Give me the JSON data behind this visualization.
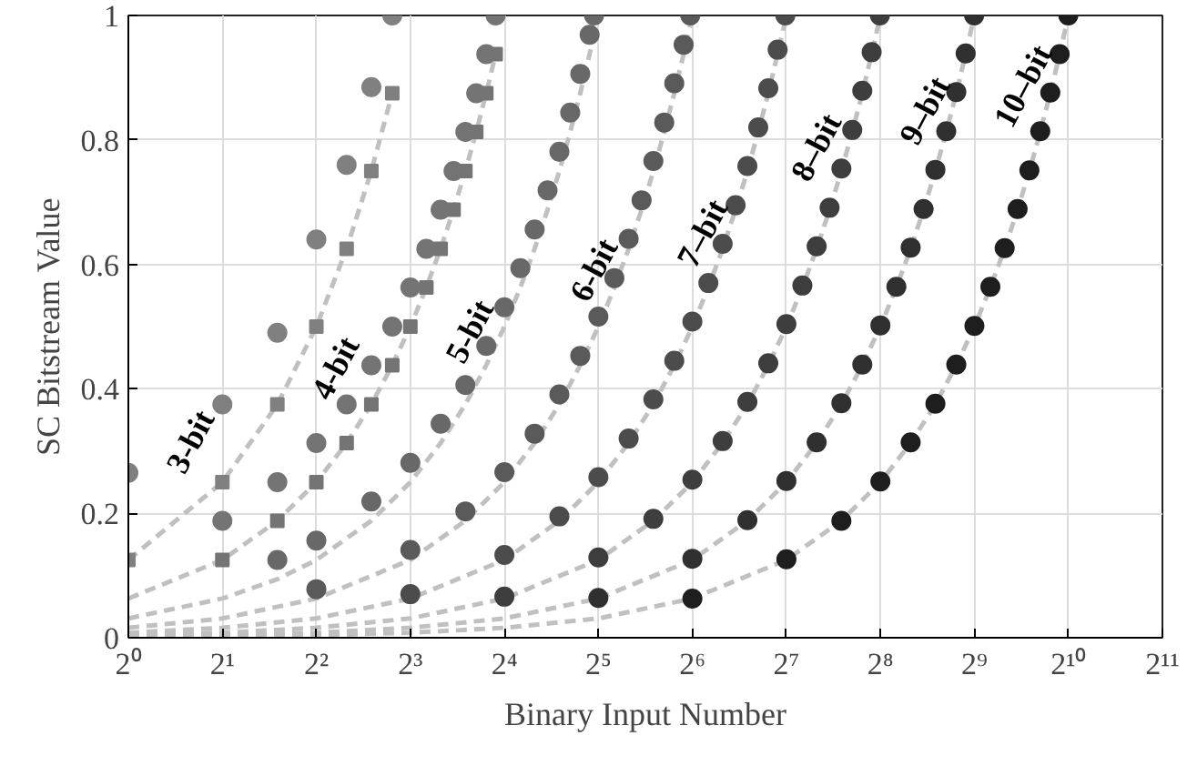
{
  "chart_data": {
    "type": "scatter",
    "xlabel": "Binary Input Number",
    "ylabel": "SC Bitstream Value",
    "xlim": [
      1,
      2048
    ],
    "ylim": [
      0,
      1
    ],
    "log": "x",
    "grid": true,
    "xticks": [
      {
        "value": 1,
        "label": "2⁰"
      },
      {
        "value": 2,
        "label": "2¹"
      },
      {
        "value": 4,
        "label": "2²"
      },
      {
        "value": 8,
        "label": "2³"
      },
      {
        "value": 16,
        "label": "2⁴"
      },
      {
        "value": 32,
        "label": "2⁵"
      },
      {
        "value": 64,
        "label": "2⁶"
      },
      {
        "value": 128,
        "label": "2⁷"
      },
      {
        "value": 256,
        "label": "2⁸"
      },
      {
        "value": 512,
        "label": "2⁹"
      },
      {
        "value": 1024,
        "label": "2¹⁰"
      },
      {
        "value": 2048,
        "label": "2¹¹"
      }
    ],
    "yticks": [
      0,
      0.2,
      0.4,
      0.6,
      0.8,
      1
    ],
    "series": [
      {
        "type": "line",
        "line_style": "dashed",
        "color": "#c0c0c0",
        "x": [
          1,
          2,
          3,
          4,
          5,
          6,
          7
        ],
        "values": [
          0.125,
          0.25,
          0.375,
          0.5,
          0.625,
          0.75,
          0.875
        ]
      },
      {
        "marker": "square",
        "color": "#808080",
        "x": [
          1,
          2,
          3,
          4,
          5,
          6,
          7
        ],
        "values": [
          0.125,
          0.25,
          0.375,
          0.5,
          0.625,
          0.75,
          0.875
        ]
      },
      {
        "marker": "circle",
        "color": "#808080",
        "x": [
          1,
          2,
          3,
          4,
          5,
          6,
          7
        ],
        "values": [
          0.265,
          0.375,
          0.49,
          0.64,
          0.76,
          0.885,
          1
        ]
      },
      {
        "type": "line",
        "line_style": "dashed",
        "color": "#c0c0c0",
        "x": [
          1,
          2,
          3,
          4,
          5,
          6,
          7,
          8,
          9,
          10,
          11,
          12,
          13,
          14,
          15
        ],
        "values": [
          0.063,
          0.125,
          0.188,
          0.25,
          0.313,
          0.375,
          0.438,
          0.5,
          0.563,
          0.625,
          0.688,
          0.75,
          0.813,
          0.875,
          0.938
        ]
      },
      {
        "marker": "square",
        "color": "#747474",
        "x": [
          2,
          3,
          4,
          5,
          6,
          7,
          8,
          9,
          10,
          11,
          12,
          13,
          14,
          15
        ],
        "values": [
          0.125,
          0.188,
          0.25,
          0.313,
          0.375,
          0.438,
          0.5,
          0.563,
          0.625,
          0.688,
          0.75,
          0.813,
          0.875,
          0.938
        ]
      },
      {
        "marker": "circle",
        "color": "#747474",
        "x": [
          2,
          3,
          4,
          5,
          6,
          7,
          8,
          9,
          10,
          11,
          12,
          13,
          14,
          15
        ],
        "values": [
          0.188,
          0.25,
          0.313,
          0.375,
          0.438,
          0.5,
          0.563,
          0.625,
          0.688,
          0.75,
          0.813,
          0.875,
          0.938,
          1
        ]
      },
      {
        "type": "line",
        "line_style": "dashed",
        "color": "#c0c0c0",
        "x": [
          1,
          2,
          3,
          4,
          6,
          8,
          10,
          12,
          14,
          16,
          18,
          20,
          22,
          24,
          26,
          28,
          30,
          31
        ],
        "values": [
          0.031,
          0.063,
          0.094,
          0.125,
          0.188,
          0.25,
          0.313,
          0.375,
          0.438,
          0.5,
          0.563,
          0.625,
          0.688,
          0.75,
          0.813,
          0.875,
          0.938,
          0.969
        ]
      },
      {
        "marker": "circle",
        "color": "#686868",
        "x": [
          3,
          4,
          6,
          8,
          10,
          12,
          14,
          16,
          18,
          20,
          22,
          24,
          26,
          28,
          30,
          31
        ],
        "values": [
          0.125,
          0.156,
          0.219,
          0.281,
          0.344,
          0.406,
          0.469,
          0.531,
          0.594,
          0.656,
          0.719,
          0.781,
          0.844,
          0.906,
          0.969,
          1
        ]
      },
      {
        "type": "line",
        "line_style": "dashed",
        "color": "#c0c0c0",
        "x": [
          1,
          2,
          4,
          8,
          12,
          16,
          20,
          24,
          28,
          32,
          36,
          40,
          44,
          48,
          52,
          56,
          60,
          63
        ],
        "values": [
          0.016,
          0.031,
          0.063,
          0.125,
          0.188,
          0.25,
          0.313,
          0.375,
          0.438,
          0.5,
          0.563,
          0.625,
          0.688,
          0.75,
          0.813,
          0.875,
          0.938,
          0.984
        ]
      },
      {
        "marker": "circle",
        "color": "#5a5a5a",
        "x": [
          4,
          8,
          12,
          16,
          20,
          24,
          28,
          32,
          36,
          40,
          44,
          48,
          52,
          56,
          60,
          63
        ],
        "values": [
          0.078,
          0.141,
          0.203,
          0.266,
          0.328,
          0.391,
          0.453,
          0.516,
          0.578,
          0.641,
          0.703,
          0.766,
          0.828,
          0.891,
          0.953,
          1
        ]
      },
      {
        "type": "line",
        "line_style": "dashed",
        "color": "#c0c0c0",
        "x": [
          1,
          2,
          4,
          8,
          16,
          24,
          32,
          40,
          48,
          56,
          64,
          72,
          80,
          88,
          96,
          104,
          112,
          120,
          127
        ],
        "values": [
          0.008,
          0.016,
          0.031,
          0.063,
          0.125,
          0.188,
          0.25,
          0.313,
          0.375,
          0.438,
          0.5,
          0.563,
          0.625,
          0.688,
          0.75,
          0.813,
          0.875,
          0.938,
          0.992
        ]
      },
      {
        "marker": "circle",
        "color": "#4c4c4c",
        "x": [
          8,
          16,
          24,
          32,
          40,
          48,
          56,
          64,
          72,
          80,
          88,
          96,
          104,
          112,
          120,
          127
        ],
        "values": [
          0.07,
          0.133,
          0.195,
          0.258,
          0.32,
          0.383,
          0.445,
          0.508,
          0.57,
          0.633,
          0.695,
          0.758,
          0.82,
          0.883,
          0.945,
          1
        ]
      },
      {
        "type": "line",
        "line_style": "dashed",
        "color": "#c0c0c0",
        "x": [
          1,
          2,
          4,
          8,
          16,
          32,
          48,
          64,
          80,
          96,
          112,
          128,
          144,
          160,
          176,
          192,
          208,
          224,
          240,
          255
        ],
        "values": [
          0.004,
          0.008,
          0.016,
          0.031,
          0.063,
          0.125,
          0.188,
          0.25,
          0.313,
          0.375,
          0.438,
          0.5,
          0.563,
          0.625,
          0.688,
          0.75,
          0.813,
          0.875,
          0.938,
          0.996
        ]
      },
      {
        "marker": "circle",
        "color": "#3e3e3e",
        "x": [
          16,
          32,
          48,
          64,
          80,
          96,
          112,
          128,
          144,
          160,
          176,
          192,
          208,
          224,
          240,
          255
        ],
        "values": [
          0.066,
          0.129,
          0.191,
          0.254,
          0.316,
          0.379,
          0.441,
          0.504,
          0.566,
          0.629,
          0.691,
          0.754,
          0.816,
          0.879,
          0.941,
          1
        ]
      },
      {
        "type": "line",
        "line_style": "dashed",
        "color": "#c0c0c0",
        "x": [
          1,
          2,
          4,
          8,
          16,
          32,
          64,
          96,
          128,
          160,
          192,
          224,
          256,
          288,
          320,
          352,
          384,
          416,
          448,
          480,
          511
        ],
        "values": [
          0.002,
          0.004,
          0.008,
          0.016,
          0.031,
          0.063,
          0.125,
          0.188,
          0.25,
          0.313,
          0.375,
          0.438,
          0.5,
          0.563,
          0.625,
          0.688,
          0.75,
          0.813,
          0.875,
          0.938,
          0.998
        ]
      },
      {
        "marker": "circle",
        "color": "#303030",
        "x": [
          32,
          64,
          96,
          128,
          160,
          192,
          224,
          256,
          288,
          320,
          352,
          384,
          416,
          448,
          480,
          511
        ],
        "values": [
          0.064,
          0.127,
          0.189,
          0.252,
          0.314,
          0.377,
          0.439,
          0.502,
          0.564,
          0.627,
          0.689,
          0.752,
          0.814,
          0.877,
          0.939,
          1
        ]
      },
      {
        "type": "line",
        "line_style": "dashed",
        "color": "#c0c0c0",
        "x": [
          1,
          2,
          4,
          8,
          16,
          32,
          64,
          128,
          192,
          256,
          320,
          384,
          448,
          512,
          576,
          640,
          704,
          768,
          832,
          896,
          960,
          1023
        ],
        "values": [
          0.001,
          0.002,
          0.004,
          0.008,
          0.016,
          0.031,
          0.063,
          0.125,
          0.188,
          0.25,
          0.313,
          0.375,
          0.438,
          0.5,
          0.563,
          0.625,
          0.688,
          0.75,
          0.813,
          0.875,
          0.938,
          0.999
        ]
      },
      {
        "marker": "circle",
        "color": "#1e1e1e",
        "x": [
          64,
          128,
          192,
          256,
          320,
          384,
          448,
          512,
          576,
          640,
          704,
          768,
          832,
          896,
          960,
          1023
        ],
        "values": [
          0.063,
          0.126,
          0.188,
          0.251,
          0.314,
          0.376,
          0.439,
          0.501,
          0.564,
          0.626,
          0.689,
          0.751,
          0.814,
          0.876,
          0.938,
          1
        ]
      }
    ],
    "annotations": [
      "3-bit",
      "4-bit",
      "5-bit",
      "6-bit",
      "7–bit",
      "8–bit",
      "9–bit",
      "10–bit"
    ]
  }
}
